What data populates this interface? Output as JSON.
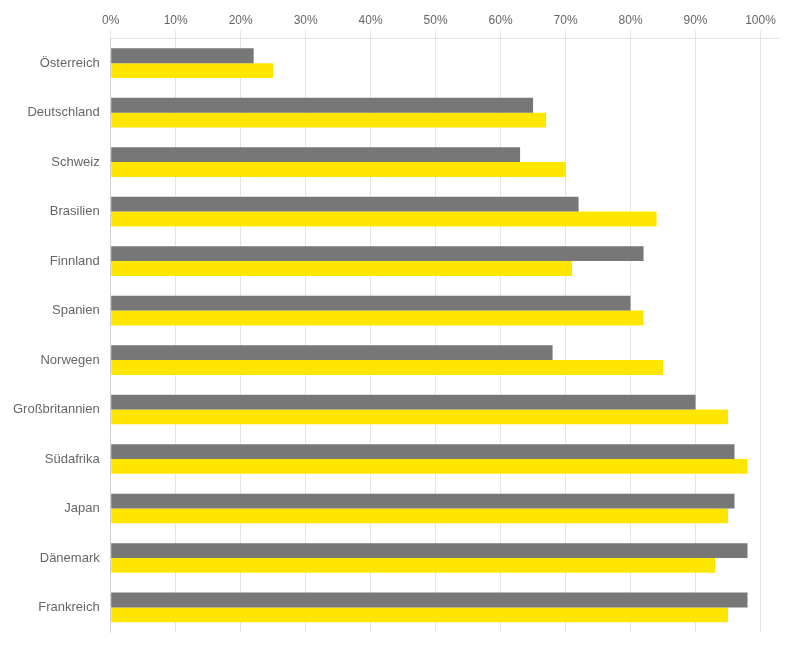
{
  "chart_data": {
    "type": "bar",
    "orientation": "horizontal",
    "categories": [
      "Frankreich",
      "Dänemark",
      "Japan",
      "Südafrika",
      "Großbritannien",
      "Norwegen",
      "Spanien",
      "Finnland",
      "Brasilien",
      "Schweiz",
      "Deutschland",
      "Österreich"
    ],
    "series": [
      {
        "color": "#777777",
        "values": [
          98,
          98,
          96,
          96,
          90,
          68,
          80,
          82,
          72,
          63,
          65,
          22
        ]
      },
      {
        "color": "#FFE600",
        "values": [
          95,
          93,
          95,
          98,
          95,
          85,
          82,
          71,
          84,
          70,
          67,
          25
        ]
      }
    ],
    "xlim": [
      0,
      103
    ],
    "xticks": [
      {
        "value": 0,
        "label": "0%"
      },
      {
        "value": 10,
        "label": "10%"
      },
      {
        "value": 20,
        "label": "20%"
      },
      {
        "value": 30,
        "label": "30%"
      },
      {
        "value": 40,
        "label": "40%"
      },
      {
        "value": 50,
        "label": "50%"
      },
      {
        "value": 60,
        "label": "60%"
      },
      {
        "value": 70,
        "label": "70%"
      },
      {
        "value": 80,
        "label": "80%"
      },
      {
        "value": 90,
        "label": "90%"
      },
      {
        "value": 100,
        "label": "100%"
      }
    ],
    "grid": true
  }
}
